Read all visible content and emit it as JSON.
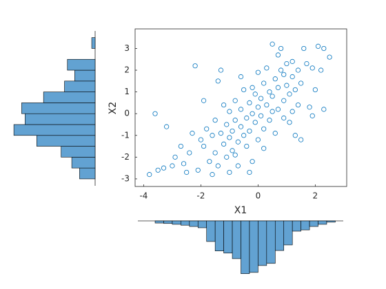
{
  "chart_data": [
    {
      "type": "scatter",
      "color": "#0072bd",
      "x_label": "X1",
      "y_label": "X2",
      "xlim": [
        -4.3,
        3.1
      ],
      "xticks": [
        -4,
        -2,
        0,
        2
      ],
      "ylim": [
        -3.35,
        3.9
      ],
      "yticks": [
        -3,
        -2,
        -1,
        0,
        1,
        2,
        3
      ],
      "x": [
        -3.8,
        -3.6,
        -3.2,
        -3.5,
        -3.3,
        -3.0,
        -2.9,
        -2.6,
        -2.4,
        -2.2,
        -2.1,
        -2.0,
        -1.9,
        -1.8,
        -1.7,
        -1.6,
        -1.5,
        -1.5,
        -1.4,
        -1.3,
        -1.3,
        -1.2,
        -1.2,
        -1.1,
        -1.1,
        -1.0,
        -1.0,
        -0.9,
        -0.9,
        -0.8,
        -0.8,
        -0.7,
        -0.7,
        -0.6,
        -0.6,
        -0.5,
        -0.5,
        -0.4,
        -0.4,
        -0.3,
        -0.3,
        -0.2,
        -0.2,
        -0.1,
        -0.1,
        0.0,
        0.0,
        0.1,
        0.1,
        0.2,
        0.2,
        0.3,
        0.3,
        0.4,
        0.4,
        0.5,
        0.5,
        0.6,
        0.6,
        0.7,
        0.7,
        0.8,
        0.8,
        0.9,
        0.9,
        1.0,
        1.0,
        1.1,
        1.1,
        1.2,
        1.2,
        1.3,
        1.3,
        1.4,
        1.5,
        1.5,
        1.6,
        1.7,
        1.8,
        1.9,
        1.9,
        2.0,
        2.1,
        2.2,
        2.3,
        2.3,
        2.5,
        -2.7,
        -2.3,
        -1.9,
        -1.4,
        -0.6,
        0.0,
        0.2,
        -0.3,
        -1.0,
        0.9,
        1.4,
        -2.5,
        -0.8,
        0.5,
        -0.2,
        0.7,
        1.2,
        -1.6
      ],
      "y": [
        -2.8,
        0.0,
        -0.6,
        -2.6,
        -2.5,
        -2.4,
        -2.0,
        -2.3,
        -1.8,
        2.2,
        -2.6,
        -1.2,
        -1.5,
        -0.7,
        -2.2,
        -1.0,
        -0.3,
        -1.8,
        -2.4,
        2.0,
        -0.9,
        -1.4,
        0.4,
        -0.5,
        -2.0,
        -1.1,
        0.1,
        -0.8,
        -1.7,
        0.6,
        -0.3,
        -1.3,
        -2.4,
        0.2,
        -0.6,
        -1.0,
        1.1,
        -0.2,
        -1.5,
        0.5,
        -0.8,
        0.0,
        -2.2,
        0.9,
        -0.4,
        0.3,
        -1.2,
        0.7,
        -0.1,
        1.4,
        -0.7,
        0.4,
        2.1,
        1.0,
        -0.3,
        3.2,
        0.8,
        1.6,
        -0.9,
        0.2,
        1.2,
        3.0,
        2.0,
        0.6,
        1.8,
        1.3,
        2.3,
        0.9,
        -0.4,
        1.7,
        2.4,
        -1.0,
        1.1,
        2.0,
        -1.2,
        1.4,
        3.0,
        2.3,
        0.3,
        -0.1,
        2.1,
        1.1,
        3.1,
        2.0,
        3.0,
        0.2,
        2.6,
        -1.5,
        -0.9,
        0.6,
        1.5,
        1.7,
        1.9,
        -1.6,
        -2.7,
        -2.7,
        -0.2,
        0.4,
        -2.7,
        -1.9,
        0.1,
        1.2,
        2.7,
        0.1,
        -2.8
      ]
    },
    {
      "type": "histogram",
      "orientation": "horizontal",
      "color": "#62a2d2",
      "bins": [
        -3,
        -2.5,
        -2,
        -1.5,
        -1,
        -0.5,
        0,
        0.5,
        1,
        1.5,
        2,
        2.5,
        3,
        3.5
      ],
      "counts": [
        32,
        48,
        70,
        120,
        167,
        144,
        151,
        106,
        63,
        42,
        57,
        0,
        7
      ],
      "xlim": [
        0,
        170
      ]
    },
    {
      "type": "histogram",
      "orientation": "vertical",
      "color": "#62a2d2",
      "bins": [
        -3.6,
        -3.3,
        -3.0,
        -2.7,
        -2.4,
        -2.1,
        -1.8,
        -1.5,
        -1.2,
        -0.9,
        -0.6,
        -0.3,
        0.0,
        0.3,
        0.6,
        0.9,
        1.2,
        1.5,
        1.8,
        2.1,
        2.4,
        2.7
      ],
      "counts": [
        5,
        6,
        8,
        10,
        13,
        16,
        48,
        70,
        75,
        88,
        123,
        120,
        104,
        99,
        69,
        56,
        24,
        21,
        13,
        8,
        3
      ],
      "ylim": [
        0,
        125
      ]
    }
  ]
}
